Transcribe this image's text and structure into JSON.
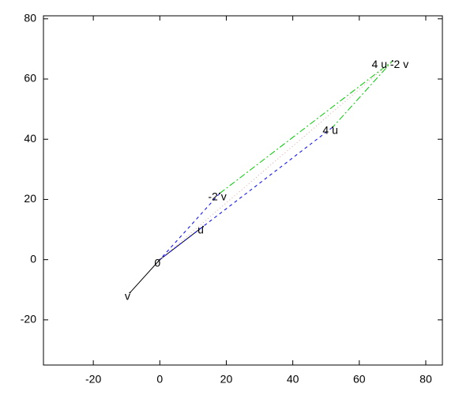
{
  "chart_data": {
    "type": "vector",
    "xlim": [
      -35,
      85
    ],
    "ylim": [
      -35,
      81
    ],
    "xticks": [
      -20,
      0,
      20,
      40,
      60,
      80
    ],
    "yticks": [
      -20,
      0,
      20,
      40,
      60,
      80
    ],
    "labels": [
      {
        "text": "0",
        "x": 0,
        "y": 0
      },
      {
        "text": "u",
        "x": 13,
        "y": 11
      },
      {
        "text": "v",
        "x": -9,
        "y": -11
      },
      {
        "text": "-2 v",
        "x": 18,
        "y": 22
      },
      {
        "text": "4 u",
        "x": 52,
        "y": 44
      },
      {
        "text": "4 u -2 v",
        "x": 70,
        "y": 66
      }
    ],
    "series": [
      {
        "color": "#000000",
        "dash": "solid",
        "x": [
          -9,
          0,
          13
        ],
        "y": [
          -11,
          0,
          11
        ]
      },
      {
        "color": "#0000ff",
        "dash": "dashed",
        "x": [
          18,
          0,
          52
        ],
        "y": [
          22,
          0,
          44
        ]
      },
      {
        "color": "#00cc00",
        "dash": "dashdot",
        "x": [
          18,
          70,
          52
        ],
        "y": [
          22,
          66,
          44
        ]
      },
      {
        "color": "#e0a0a0",
        "dash": "dotted",
        "x": [
          0,
          70
        ],
        "y": [
          0,
          66
        ]
      }
    ]
  }
}
